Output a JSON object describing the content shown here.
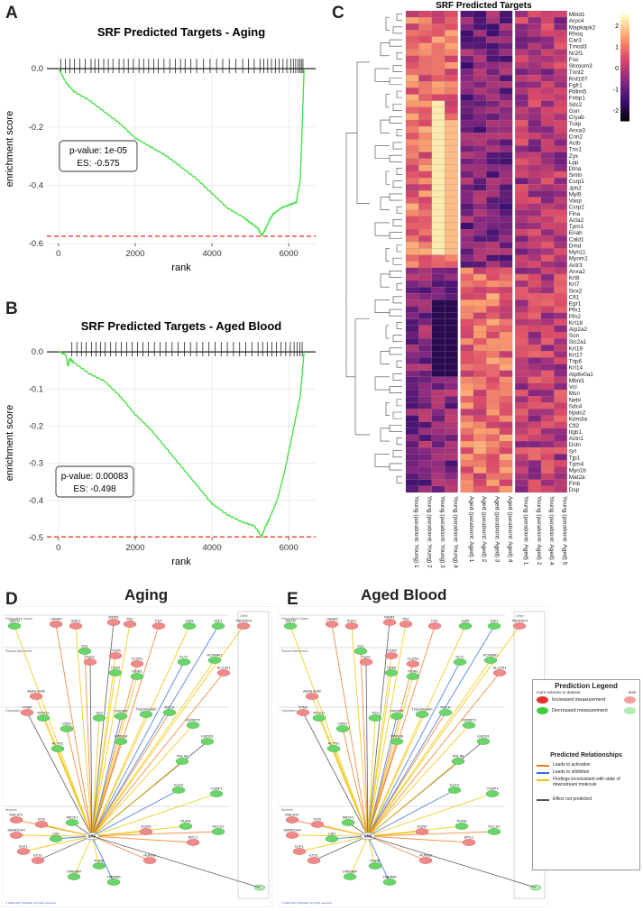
{
  "panels": {
    "A": "A",
    "B": "B",
    "C": "C",
    "D": "D",
    "E": "E"
  },
  "chart_data": [
    {
      "type": "line",
      "panel": "A",
      "title": "SRF Predicted Targets - Aging",
      "xlabel": "rank",
      "ylabel": "enrichment score",
      "xlim": [
        -300,
        6700
      ],
      "ylim": [
        -0.6,
        0.05
      ],
      "xticks": [
        0,
        2000,
        4000,
        6000
      ],
      "yticks": [
        0.0,
        -0.2,
        -0.4,
        -0.6
      ],
      "ytick_labels": [
        "0.0",
        "-0.2",
        "-0.4",
        "-0.6"
      ],
      "x": [
        0,
        200,
        400,
        800,
        1200,
        1600,
        2000,
        2400,
        2800,
        3200,
        3600,
        4000,
        4400,
        4800,
        5000,
        5200,
        5300,
        5400,
        5500,
        5600,
        5800,
        6000,
        6200,
        6300,
        6350,
        6400
      ],
      "y": [
        0,
        -0.05,
        -0.08,
        -0.11,
        -0.15,
        -0.19,
        -0.24,
        -0.27,
        -0.3,
        -0.34,
        -0.38,
        -0.43,
        -0.48,
        -0.51,
        -0.53,
        -0.55,
        -0.575,
        -0.55,
        -0.52,
        -0.5,
        -0.48,
        -0.47,
        -0.46,
        -0.38,
        -0.2,
        0
      ],
      "min_es": -0.575,
      "pvalue_label": "p-value: 1e-05",
      "es_label": "ES: -0.575",
      "tick_ranks": [
        60,
        180,
        300,
        420,
        560,
        700,
        850,
        950,
        1050,
        1180,
        1300,
        1420,
        1580,
        1700,
        1820,
        1950,
        2100,
        2220,
        2350,
        2480,
        2600,
        2750,
        2900,
        3050,
        3180,
        3300,
        3450,
        3600,
        3780,
        3950,
        4120,
        4280,
        4450,
        4620,
        4800,
        4950,
        5100,
        5250,
        5350,
        5450,
        5550,
        5650,
        5750,
        5850,
        5950,
        6050,
        6120,
        6180,
        6240,
        6290,
        6330,
        6370
      ]
    },
    {
      "type": "line",
      "panel": "B",
      "title": "SRF Predicted Targets - Aged Blood",
      "xlabel": "rank",
      "ylabel": "enrichment score",
      "xlim": [
        -300,
        6700
      ],
      "ylim": [
        -0.5,
        0.01
      ],
      "xticks": [
        0,
        2000,
        4000,
        6000
      ],
      "yticks": [
        0.0,
        -0.1,
        -0.2,
        -0.3,
        -0.4,
        -0.5
      ],
      "ytick_labels": [
        "0.0",
        "-0.1",
        "-0.2",
        "-0.3",
        "-0.4",
        "-0.5"
      ],
      "x": [
        0,
        200,
        250,
        300,
        400,
        800,
        1200,
        1600,
        2000,
        2400,
        2800,
        3200,
        3600,
        4000,
        4400,
        4800,
        5100,
        5300,
        5400,
        5500,
        5700,
        5900,
        6100,
        6300,
        6400
      ],
      "y": [
        0,
        -0.01,
        -0.04,
        -0.02,
        -0.03,
        -0.06,
        -0.08,
        -0.12,
        -0.17,
        -0.21,
        -0.26,
        -0.31,
        -0.36,
        -0.41,
        -0.44,
        -0.46,
        -0.47,
        -0.498,
        -0.47,
        -0.45,
        -0.4,
        -0.32,
        -0.22,
        -0.12,
        0
      ],
      "min_es": -0.498,
      "pvalue_label": "p-value: 0.00083",
      "es_label": "ES: -0.498",
      "tick_ranks": [
        350,
        480,
        600,
        720,
        860,
        980,
        1100,
        1220,
        1360,
        1500,
        1640,
        1780,
        1920,
        2060,
        2200,
        2340,
        2500,
        2650,
        2800,
        2960,
        3120,
        3280,
        3440,
        3600,
        3760,
        3920,
        4080,
        4240,
        4400,
        4560,
        4720,
        4880,
        5040,
        5200,
        5320,
        5440,
        5560,
        5680,
        5800,
        5920,
        6040,
        6140,
        6220,
        6290,
        6350
      ]
    },
    {
      "type": "heatmap",
      "panel": "C",
      "title": "SRF Predicted Targets",
      "rows": [
        "Mbtd1",
        "Arpc4",
        "Mapkapk2",
        "Rhoq",
        "Car3",
        "Tmod3",
        "Nr2f1",
        "Fos",
        "Shroom3",
        "Tnnt2",
        "Rnf167",
        "Fgfr1",
        "Pdlim5",
        "Fnbp1",
        "Sdc2",
        "Gsn",
        "Cryab",
        "Tcap",
        "Anxa3",
        "Cnn2",
        "Actb",
        "Tns1",
        "Zyx",
        "Lpp",
        "Dtna",
        "Smtn",
        "Csrp1",
        "Jph2",
        "Myl9",
        "Vasp",
        "Csrp2",
        "Flna",
        "Acta2",
        "Tpm1",
        "Enah",
        "Cald1",
        "Dmd",
        "Myh11",
        "Myom1",
        "Actr3",
        "Anxa2",
        "Krt8",
        "Krt7",
        "Snx2",
        "Cfl1",
        "Egr1",
        "Pfn1",
        "Pfn2",
        "Krt18",
        "Atp2a2",
        "Son",
        "Slc2a1",
        "Krt19",
        "Krt17",
        "Trip6",
        "Krt14",
        "Atp6v0a1",
        "Mbnl1",
        "Vcl",
        "Msn",
        "Nebl",
        "Sdc4",
        "Npas2",
        "Kdm3a",
        "Cfl2",
        "Itgb1",
        "Actn1",
        "Dstn",
        "Srf",
        "Tjp1",
        "Tpm4",
        "Myo1b",
        "Mat2a",
        "Flnb",
        "Dsp"
      ],
      "columns": [
        "Young (parabiont: Young) 1",
        "Young (parabiont: Young) 2",
        "Young (parabiont: Young) 3",
        "Young (parabiont: Young) 4",
        "Aged (parabiont: Aged) 1",
        "Aged (parabiont: Aged) 2",
        "Aged (parabiont: Aged) 3",
        "Aged (parabiont: Aged) 4",
        "Young (parabiont: Aged) 1",
        "Young (parabiont: Aged) 2",
        "Young (parabiont: Aged) 4",
        "Young (parabiont: Aged) 5"
      ],
      "color_scale": {
        "min": -2.5,
        "max": 2.5,
        "ticks": [
          2,
          1,
          0,
          -1,
          -2
        ],
        "colors": [
          "#000004",
          "#3b0f70",
          "#8c2981",
          "#de4968",
          "#fe9f6d",
          "#fcfdbf"
        ]
      }
    }
  ],
  "networks": {
    "D": {
      "title": "Aging"
    },
    "E": {
      "title": "Aged Blood"
    },
    "regions": [
      "Extracellular Space",
      "Plasma Membrane",
      "Cytoplasm",
      "Nucleus",
      "Other"
    ],
    "hub": "SRF",
    "copyright": "© 2000-2021 QIAGEN. All rights reserved.",
    "nodes": [
      {
        "id": "SMTN",
        "c": "g"
      },
      {
        "id": "LAMA3",
        "c": "r"
      },
      {
        "id": "SGK1",
        "c": "r"
      },
      {
        "id": "WDR1",
        "c": "r"
      },
      {
        "id": "TNC",
        "c": "r"
      },
      {
        "id": "FST",
        "c": "r"
      },
      {
        "id": "GSN",
        "c": "g"
      },
      {
        "id": "IGF1",
        "c": "g"
      },
      {
        "id": "TNFRSF9",
        "c": "r"
      },
      {
        "id": "VCL",
        "c": "g"
      },
      {
        "id": "ITGA5",
        "c": "r"
      },
      {
        "id": "Tgm1",
        "c": "r"
      },
      {
        "id": "CD83",
        "c": "g"
      },
      {
        "id": "CLDN1",
        "c": "r"
      },
      {
        "id": "ITGB1",
        "c": "g"
      },
      {
        "id": "FLT1",
        "c": "g"
      },
      {
        "id": "KCNMB1",
        "c": "g"
      },
      {
        "id": "SLC2A1",
        "c": "r"
      },
      {
        "id": "Alpha Actin",
        "c": "r"
      },
      {
        "id": "TPM2",
        "c": "r"
      },
      {
        "id": "MYH11",
        "c": "g"
      },
      {
        "id": "CNN1",
        "c": "g"
      },
      {
        "id": "TES",
        "c": "g"
      },
      {
        "id": "TRIOBP",
        "c": "g"
      },
      {
        "id": "Tropomyosin",
        "c": "g"
      },
      {
        "id": "MYLK",
        "c": "g"
      },
      {
        "id": "FERMT2",
        "c": "g"
      },
      {
        "id": "LMOD1",
        "c": "g"
      },
      {
        "id": "PDLIM",
        "c": "g"
      },
      {
        "id": "SPIN1B",
        "c": "g"
      },
      {
        "id": "ACTN1",
        "c": "g"
      },
      {
        "id": "ELK3",
        "c": "g"
      },
      {
        "id": "CSRP1",
        "c": "g"
      },
      {
        "id": "MALAT1",
        "c": "r"
      },
      {
        "id": "FOS",
        "c": "r"
      },
      {
        "id": "NR2F1",
        "c": "g"
      },
      {
        "id": "PURA",
        "c": "g"
      },
      {
        "id": "HCLS1",
        "c": "g"
      },
      {
        "id": "SMARCA4",
        "c": "r"
      },
      {
        "id": "LBH",
        "c": "g"
      },
      {
        "id": "EGR3",
        "c": "r"
      },
      {
        "id": "EPC1",
        "c": "r"
      },
      {
        "id": "ELK1",
        "c": "r"
      },
      {
        "id": "ETS1",
        "c": "r"
      },
      {
        "id": "PURB",
        "c": "g"
      },
      {
        "id": "RUNX2",
        "c": "r"
      },
      {
        "id": "CREBBP",
        "c": "g"
      },
      {
        "id": "TMBIM6",
        "c": "g"
      }
    ]
  },
  "legend": {
    "title": "Prediction Legend",
    "more_label": "more extreme in dataset",
    "less_label": "less",
    "increased": "Increased measurement",
    "decreased": "Decreased measurement",
    "relationships_title": "Predicted Relationships",
    "activation": "Leads to activation",
    "inhibition": "Leads to inhibition",
    "inconsistent": "Findings inconsistent with state of downstream molecule",
    "not_predicted": "Effect not predicted",
    "colors": {
      "activation": "#f07a22",
      "inhibition": "#3a6fd8",
      "inconsistent": "#f0c400",
      "not_predicted": "#555555",
      "increased": "#e53030",
      "increased_light": "#f4a0a0",
      "decreased": "#3ccc3c",
      "decreased_light": "#b2ebb2"
    }
  }
}
